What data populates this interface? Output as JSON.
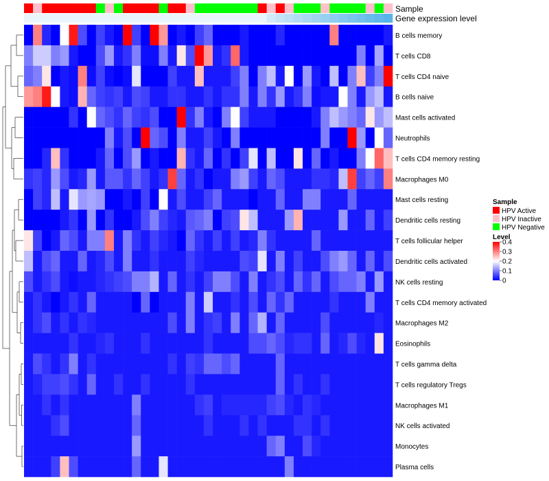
{
  "chart_data": {
    "type": "heatmap",
    "title": "",
    "annotation_tracks": [
      "Sample",
      "Gene expression level"
    ],
    "sample_legend": {
      "title": "Sample",
      "items": [
        {
          "label": "HPV Active",
          "color": "#FF0000"
        },
        {
          "label": "HPV Inactive",
          "color": "#FFC0CB"
        },
        {
          "label": "HPV Negative",
          "color": "#00FF00"
        }
      ]
    },
    "color_legend": {
      "title": "Level",
      "ticks": [
        0.4,
        0.3,
        0.2,
        0.1,
        0
      ],
      "tick_labels": [
        "0.4",
        "0.3",
        "0.2",
        "0.1",
        "0"
      ],
      "range": [
        0,
        0.4
      ],
      "colors": [
        "#0000FF",
        "#FFFFFF",
        "#FF0000"
      ]
    },
    "sample_groups": [
      "A",
      "I",
      "A",
      "A",
      "A",
      "A",
      "A",
      "A",
      "N",
      "I",
      "N",
      "A",
      "A",
      "A",
      "A",
      "N",
      "A",
      "A",
      "I",
      "N",
      "N",
      "N",
      "N",
      "N",
      "N",
      "N",
      "A",
      "I",
      "A",
      "I",
      "N",
      "N",
      "N",
      "I",
      "N",
      "N",
      "N",
      "N",
      "I",
      "N",
      "I"
    ],
    "expression_track": [
      0,
      0,
      0,
      0,
      0,
      0,
      0,
      0,
      0,
      0,
      0,
      0,
      0,
      0,
      0,
      0,
      0,
      0,
      0,
      0,
      0,
      0,
      0,
      0,
      0,
      0,
      0,
      0.05,
      0.08,
      0.1,
      0.12,
      0.14,
      0.16,
      0.18,
      0.2,
      0.22,
      0.24,
      0.26,
      0.28,
      0.3,
      0.32
    ],
    "group_colors": {
      "A": "#FF0000",
      "I": "#FFC0CB",
      "N": "#00FF00"
    },
    "expression_colors": [
      "#EAF4FB",
      "#56B4E9"
    ],
    "rows": [
      "B cells memory",
      "T cells CD8",
      "T cells CD4 naive",
      "B cells naive",
      "Mast cells activated",
      "Neutrophils",
      "T cells CD4 memory resting",
      "Macrophages M0",
      "Mast cells resting",
      "Dendritic cells resting",
      "T cells follicular helper",
      "Dendritic cells activated",
      "NK cells resting",
      "T cells CD4 memory activated",
      "Macrophages M2",
      "Eosinophils",
      "T cells gamma delta",
      "T cells regulatory  Tregs",
      "Macrophages M1",
      "NK cells activated",
      "Monocytes",
      "Plasma cells"
    ],
    "values": [
      [
        0,
        0.3,
        0.03,
        0,
        0.2,
        0.38,
        0.06,
        0,
        0.05,
        0.02,
        0,
        0.4,
        0.05,
        0,
        0.4,
        0.28,
        0,
        0.02,
        0,
        0.05,
        0.08,
        0,
        0,
        0,
        0.02,
        0,
        0,
        0,
        0.03,
        0,
        0,
        0,
        0,
        0,
        0.3,
        0,
        0,
        0,
        0,
        0,
        0.02
      ],
      [
        0.1,
        0.16,
        0.16,
        0.1,
        0.12,
        0.02,
        0,
        0,
        0.06,
        0.12,
        0.02,
        0.04,
        0.1,
        0.01,
        0.01,
        0.1,
        0.02,
        0.22,
        0.06,
        0.4,
        0.28,
        0.02,
        0.04,
        0.32,
        0.02,
        0,
        0,
        0,
        0,
        0,
        0,
        0,
        0,
        0,
        0,
        0,
        0,
        0.1,
        0,
        0.13,
        0
      ],
      [
        0.08,
        0.1,
        0.22,
        0,
        0.02,
        0.01,
        0.3,
        0.01,
        0.05,
        0.01,
        0,
        0.01,
        0.18,
        0,
        0,
        0,
        0.05,
        0.02,
        0.02,
        0.25,
        0.02,
        0.02,
        0.02,
        0.05,
        0.1,
        0,
        0.1,
        0.15,
        0.02,
        0.2,
        0,
        0.12,
        0.02,
        0,
        0.15,
        0,
        0.1,
        0.25,
        0.05,
        0.1,
        0.4
      ],
      [
        0.28,
        0.3,
        0.38,
        0.2,
        0.02,
        0.01,
        0.26,
        0.08,
        0.05,
        0.04,
        0.05,
        0.02,
        0.06,
        0.05,
        0.02,
        0.02,
        0.04,
        0.04,
        0.02,
        0.02,
        0.04,
        0.02,
        0.04,
        0.04,
        0.1,
        0.02,
        0.1,
        0.04,
        0.12,
        0.02,
        0.04,
        0.1,
        0.01,
        0.02,
        0.02,
        0.2,
        0.1,
        0.02,
        0.12,
        0.15,
        0.02
      ],
      [
        0,
        0,
        0,
        0,
        0,
        0.04,
        0,
        0.2,
        0.08,
        0.06,
        0.04,
        0.08,
        0.05,
        0.04,
        0.06,
        0,
        0,
        0.4,
        0.04,
        0.1,
        0.02,
        0,
        0.1,
        0.2,
        0.05,
        0.02,
        0.02,
        0.02,
        0,
        0,
        0,
        0,
        0.02,
        0.1,
        0.15,
        0.12,
        0.1,
        0.08,
        0.22,
        0.12,
        0.15
      ],
      [
        0,
        0,
        0,
        0,
        0,
        0,
        0,
        0,
        0,
        0.1,
        0.02,
        0.06,
        0,
        0.4,
        0.08,
        0.06,
        0,
        0.1,
        0.02,
        0.02,
        0.05,
        0.02,
        0,
        0.1,
        0,
        0,
        0,
        0,
        0,
        0,
        0,
        0,
        0,
        0.1,
        0,
        0,
        0.4,
        0.12,
        0,
        0.2,
        0.08
      ],
      [
        0,
        0,
        0.03,
        0.25,
        0.04,
        0,
        0,
        0,
        0.02,
        0.08,
        0,
        0.06,
        0.12,
        0,
        0.02,
        0,
        0,
        0.26,
        0.04,
        0.02,
        0.08,
        0,
        0.04,
        0,
        0.05,
        0.18,
        0,
        0.15,
        0,
        0,
        0.22,
        0,
        0.08,
        0,
        0.02,
        0,
        0,
        0.1,
        0.2,
        0.32,
        0.25
      ],
      [
        0.04,
        0.05,
        0.03,
        0.12,
        0.06,
        0.02,
        0.03,
        0.12,
        0.02,
        0.07,
        0.07,
        0.04,
        0.08,
        0.05,
        0.02,
        0.04,
        0.35,
        0.08,
        0.02,
        0.04,
        0,
        0.02,
        0.02,
        0.1,
        0.12,
        0.05,
        0.02,
        0.08,
        0.06,
        0.02,
        0.02,
        0.02,
        0.04,
        0.04,
        0.03,
        0.15,
        0.35,
        0.05,
        0.08,
        0.05,
        0.3
      ],
      [
        0,
        0.05,
        0.03,
        0.15,
        0.02,
        0.18,
        0.12,
        0.13,
        0.12,
        0,
        0,
        0.02,
        0,
        0.05,
        0,
        0.2,
        0.02,
        0.06,
        0.02,
        0.02,
        0.05,
        0.08,
        0.02,
        0.02,
        0.02,
        0,
        0.02,
        0.02,
        0.08,
        0.02,
        0.02,
        0.1,
        0.1,
        0.02,
        0.02,
        0.02,
        0.08,
        0.02,
        0.02,
        0.02,
        0.02
      ],
      [
        0,
        0,
        0,
        0,
        0.02,
        0.04,
        0,
        0.12,
        0,
        0.04,
        0,
        0,
        0.02,
        0.06,
        0.1,
        0.05,
        0.03,
        0.02,
        0.07,
        0.08,
        0.1,
        0,
        0.05,
        0.06,
        0.22,
        0.15,
        0.02,
        0.02,
        0.02,
        0.12,
        0.26,
        0.02,
        0.02,
        0.02,
        0.02,
        0.12,
        0.02,
        0.02,
        0.08,
        0.02,
        0.05
      ],
      [
        0.22,
        0.05,
        0,
        0.02,
        0.08,
        0.06,
        0.02,
        0.1,
        0.1,
        0.3,
        0.02,
        0.1,
        0.04,
        0.02,
        0.05,
        0.03,
        0.02,
        0,
        0.08,
        0.04,
        0.02,
        0.05,
        0.02,
        0.05,
        0.02,
        0.03,
        0.1,
        0.04,
        0.02,
        0.02,
        0.02,
        0.02,
        0.08,
        0.02,
        0.02,
        0.02,
        0.02,
        0.02,
        0.02,
        0.02,
        0.02
      ],
      [
        0.15,
        0.02,
        0.06,
        0.08,
        0.02,
        0.02,
        0.08,
        0.02,
        0.03,
        0.06,
        0.02,
        0.1,
        0.02,
        0.02,
        0.04,
        0.02,
        0.02,
        0.02,
        0.05,
        0.03,
        0.02,
        0.02,
        0.02,
        0.02,
        0.06,
        0.05,
        0.18,
        0.02,
        0.1,
        0.02,
        0.05,
        0.02,
        0.02,
        0.06,
        0.1,
        0.12,
        0.08,
        0.02,
        0.08,
        0.02,
        0.06
      ],
      [
        0.06,
        0.02,
        0.04,
        0.06,
        0.02,
        0.01,
        0.02,
        0.02,
        0.03,
        0.04,
        0.05,
        0.06,
        0.1,
        0.1,
        0.14,
        0.02,
        0.08,
        0.02,
        0.04,
        0.02,
        0.05,
        0.1,
        0.1,
        0.06,
        0.02,
        0.1,
        0.02,
        0.04,
        0.06,
        0.02,
        0.08,
        0.04,
        0.08,
        0.02,
        0.06,
        0.08,
        0.08,
        0.1,
        0.02,
        0.12,
        0.02
      ],
      [
        0.02,
        0.04,
        0.02,
        0,
        0.02,
        0.04,
        0.02,
        0.08,
        0.02,
        0.02,
        0.02,
        0.02,
        0,
        0.08,
        0,
        0.02,
        0.02,
        0.02,
        0.1,
        0.02,
        0.16,
        0.02,
        0.02,
        0.04,
        0.02,
        0.06,
        0.02,
        0.08,
        0.04,
        0.08,
        0.02,
        0.02,
        0.02,
        0.02,
        0.04,
        0.02,
        0.02,
        0.02,
        0.1,
        0.02,
        0.02
      ],
      [
        0.02,
        0.04,
        0.06,
        0.02,
        0.04,
        0.02,
        0.04,
        0.03,
        0.02,
        0.02,
        0.02,
        0.02,
        0.02,
        0.02,
        0.02,
        0.02,
        0.06,
        0.02,
        0.1,
        0.02,
        0.04,
        0.05,
        0.02,
        0.1,
        0.02,
        0.08,
        0.14,
        0.02,
        0.08,
        0.02,
        0.02,
        0.02,
        0.02,
        0.06,
        0.02,
        0.02,
        0.02,
        0.02,
        0.02,
        0.03,
        0.02
      ],
      [
        0.02,
        0.02,
        0.02,
        0.02,
        0.02,
        0.04,
        0.02,
        0.02,
        0.03,
        0.04,
        0.02,
        0.02,
        0.02,
        0.04,
        0.02,
        0.02,
        0.02,
        0.02,
        0.02,
        0.02,
        0.04,
        0.02,
        0.02,
        0.02,
        0.02,
        0.06,
        0.06,
        0.08,
        0.06,
        0.03,
        0.04,
        0.04,
        0.02,
        0.08,
        0.02,
        0.03,
        0.06,
        0.03,
        0.02,
        0.22,
        0.02
      ],
      [
        0.02,
        0.06,
        0.04,
        0.02,
        0.04,
        0.1,
        0.02,
        0.04,
        0.02,
        0.02,
        0.02,
        0.02,
        0.02,
        0.02,
        0.02,
        0.02,
        0.04,
        0.02,
        0.05,
        0.04,
        0.08,
        0.08,
        0.06,
        0.08,
        0.02,
        0.02,
        0.02,
        0.02,
        0.08,
        0.02,
        0.02,
        0.02,
        0.02,
        0.02,
        0.02,
        0.02,
        0.02,
        0.02,
        0.02,
        0.02,
        0.02
      ],
      [
        0.02,
        0.03,
        0.05,
        0.05,
        0.06,
        0.04,
        0.02,
        0.08,
        0.02,
        0.02,
        0.04,
        0.02,
        0.02,
        0.04,
        0.02,
        0.02,
        0.02,
        0.02,
        0.04,
        0.02,
        0.02,
        0.02,
        0.02,
        0.02,
        0.02,
        0.02,
        0.02,
        0.02,
        0.08,
        0.02,
        0.04,
        0.02,
        0.02,
        0.04,
        0.02,
        0.02,
        0.02,
        0.02,
        0.02,
        0.02,
        0.02
      ],
      [
        0.02,
        0.02,
        0.04,
        0.02,
        0.04,
        0.02,
        0.02,
        0.02,
        0.02,
        0.02,
        0.02,
        0.02,
        0.1,
        0.02,
        0.02,
        0.02,
        0.02,
        0.02,
        0.02,
        0.04,
        0.05,
        0.02,
        0.03,
        0.03,
        0.03,
        0.03,
        0.03,
        0.05,
        0.06,
        0.03,
        0.02,
        0.04,
        0.03,
        0.02,
        0.02,
        0.02,
        0.02,
        0.02,
        0.02,
        0.02,
        0.02
      ],
      [
        0.02,
        0.02,
        0.02,
        0.04,
        0.06,
        0.02,
        0.02,
        0.02,
        0.02,
        0.02,
        0.02,
        0.02,
        0.08,
        0.02,
        0.02,
        0.02,
        0.02,
        0.02,
        0.02,
        0.02,
        0.04,
        0.02,
        0.02,
        0.02,
        0.04,
        0.02,
        0.04,
        0.02,
        0.02,
        0.02,
        0.04,
        0.04,
        0.02,
        0.04,
        0.02,
        0.02,
        0.02,
        0.02,
        0.02,
        0.02,
        0.02
      ],
      [
        0.02,
        0.02,
        0.02,
        0.02,
        0.02,
        0.02,
        0.02,
        0.02,
        0.02,
        0.02,
        0.02,
        0.02,
        0.12,
        0.02,
        0.02,
        0.02,
        0.02,
        0.02,
        0.02,
        0.02,
        0.02,
        0.02,
        0.02,
        0.02,
        0.02,
        0.02,
        0.02,
        0.08,
        0.1,
        0.02,
        0.02,
        0.06,
        0.03,
        0.02,
        0.02,
        0.02,
        0.02,
        0.02,
        0.02,
        0.02,
        0.02
      ],
      [
        0.02,
        0.02,
        0.02,
        0.05,
        0.25,
        0.06,
        0.02,
        0.02,
        0.02,
        0.02,
        0.02,
        0.02,
        0.08,
        0.02,
        0.02,
        0.18,
        0.02,
        0.02,
        0.02,
        0.02,
        0.02,
        0.02,
        0.02,
        0.02,
        0.02,
        0.02,
        0.02,
        0.02,
        0.02,
        0.1,
        0.02,
        0.02,
        0.02,
        0.02,
        0.02,
        0.02,
        0.02,
        0.02,
        0.02,
        0.02,
        0.02
      ]
    ]
  }
}
